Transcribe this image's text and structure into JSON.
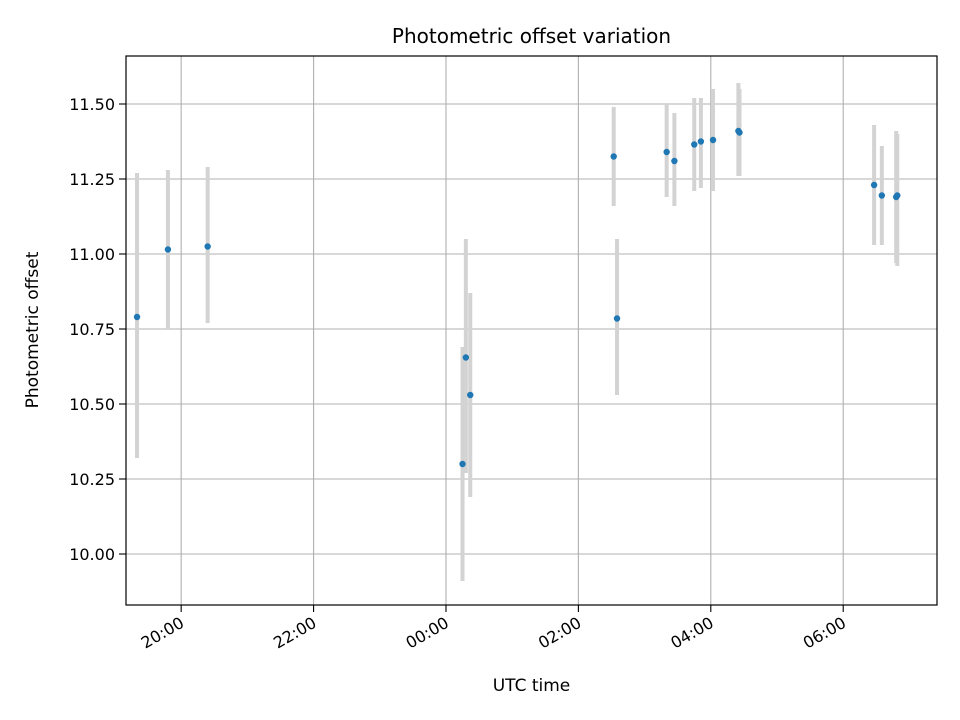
{
  "chart_data": {
    "type": "scatter",
    "title": "Photometric offset variation",
    "xlabel": "UTC time",
    "ylabel": "Photometric offset",
    "x_ticks": [
      "20:00",
      "22:00",
      "00:00",
      "02:00",
      "04:00",
      "06:00"
    ],
    "y_ticks": [
      "10.00",
      "10.25",
      "10.50",
      "10.75",
      "11.00",
      "11.25",
      "11.50"
    ],
    "xlim": [
      "19:10",
      "07:25"
    ],
    "ylim": [
      9.83,
      11.66
    ],
    "grid": true,
    "point_color": "#1f77b4",
    "errorbar_color": "#d3d3d3",
    "points": [
      {
        "x": "19:20",
        "y": 10.79,
        "ylow": 10.32,
        "yhigh": 11.27
      },
      {
        "x": "19:48",
        "y": 11.015,
        "ylow": 10.75,
        "yhigh": 11.28
      },
      {
        "x": "20:24",
        "y": 11.025,
        "ylow": 10.77,
        "yhigh": 11.29
      },
      {
        "x": "00:15",
        "y": 10.3,
        "ylow": 9.91,
        "yhigh": 10.69
      },
      {
        "x": "00:18",
        "y": 10.655,
        "ylow": 10.27,
        "yhigh": 11.05
      },
      {
        "x": "00:22",
        "y": 10.53,
        "ylow": 10.19,
        "yhigh": 10.87
      },
      {
        "x": "02:32",
        "y": 11.325,
        "ylow": 11.16,
        "yhigh": 11.49
      },
      {
        "x": "02:35",
        "y": 10.785,
        "ylow": 10.53,
        "yhigh": 11.05
      },
      {
        "x": "03:20",
        "y": 11.34,
        "ylow": 11.19,
        "yhigh": 11.5
      },
      {
        "x": "03:27",
        "y": 11.31,
        "ylow": 11.16,
        "yhigh": 11.47
      },
      {
        "x": "03:45",
        "y": 11.365,
        "ylow": 11.21,
        "yhigh": 11.52
      },
      {
        "x": "03:51",
        "y": 11.375,
        "ylow": 11.22,
        "yhigh": 11.52
      },
      {
        "x": "04:02",
        "y": 11.38,
        "ylow": 11.21,
        "yhigh": 11.55
      },
      {
        "x": "04:25",
        "y": 11.41,
        "ylow": 11.26,
        "yhigh": 11.57
      },
      {
        "x": "04:26",
        "y": 11.405,
        "ylow": 11.26,
        "yhigh": 11.55
      },
      {
        "x": "06:28",
        "y": 11.23,
        "ylow": 11.03,
        "yhigh": 11.43
      },
      {
        "x": "06:35",
        "y": 11.195,
        "ylow": 11.03,
        "yhigh": 11.36
      },
      {
        "x": "06:48",
        "y": 11.19,
        "ylow": 10.97,
        "yhigh": 11.41
      },
      {
        "x": "06:49",
        "y": 11.195,
        "ylow": 10.96,
        "yhigh": 11.4
      }
    ]
  }
}
